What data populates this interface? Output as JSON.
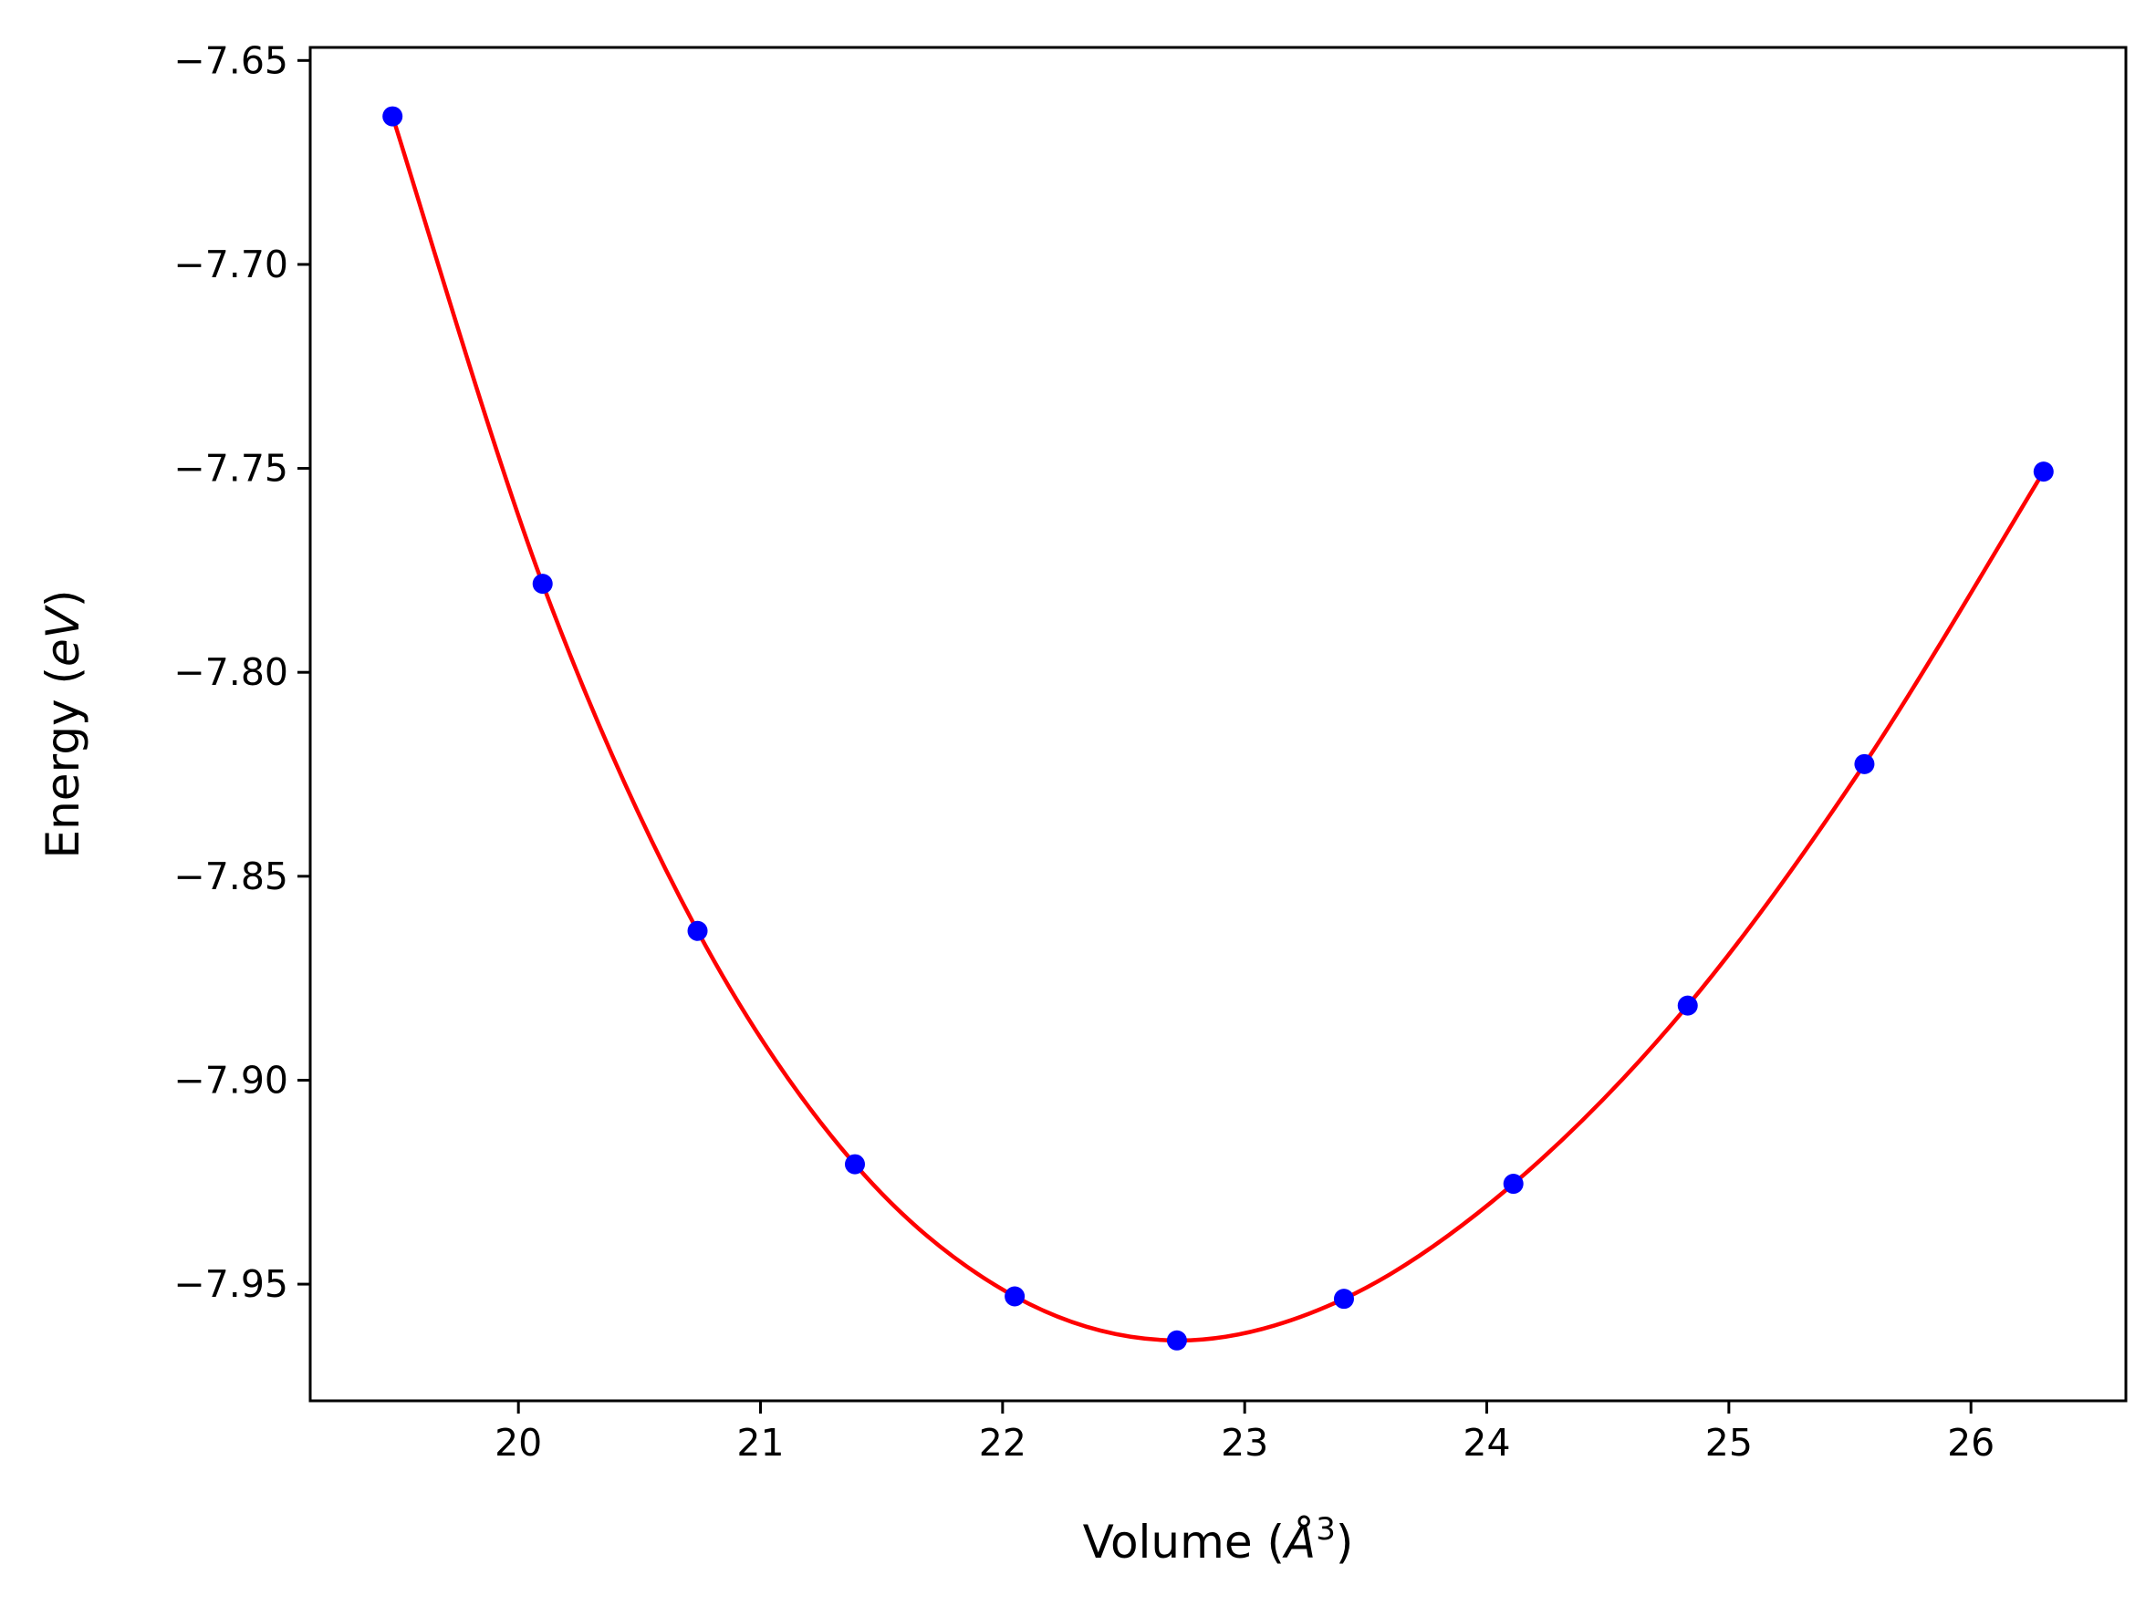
{
  "chart_data": {
    "type": "line",
    "title": "",
    "xlabel": "Volume (Å³)",
    "ylabel": "Energy (eV)",
    "xlim": [
      19.14,
      26.64
    ],
    "ylim": [
      -7.9786,
      -7.6468
    ],
    "xticks": [
      20,
      21,
      22,
      23,
      24,
      25,
      26
    ],
    "yticks": [
      -7.65,
      -7.7,
      -7.75,
      -7.8,
      -7.85,
      -7.9,
      -7.95
    ],
    "xtick_labels": [
      "20",
      "21",
      "22",
      "23",
      "24",
      "25",
      "26"
    ],
    "ytick_labels": [
      "−7.65",
      "−7.70",
      "−7.75",
      "−7.80",
      "−7.85",
      "−7.90",
      "−7.95"
    ],
    "grid": false,
    "legend": null,
    "series": [
      {
        "kind": "points",
        "color": "#0000ff",
        "x": [
          19.48,
          20.1,
          20.74,
          21.39,
          22.05,
          22.72,
          23.41,
          24.11,
          24.83,
          25.56,
          26.3
        ],
        "y": [
          -7.6637,
          -7.7783,
          -7.8634,
          -7.9206,
          -7.953,
          -7.9638,
          -7.9536,
          -7.9254,
          -7.8817,
          -7.8225,
          -7.7508
        ]
      },
      {
        "kind": "fit-line",
        "color": "#ff0000",
        "x": [
          19.48,
          20.1,
          20.74,
          21.39,
          22.05,
          22.72,
          23.41,
          24.11,
          24.83,
          25.56,
          26.3
        ],
        "y": [
          -7.6637,
          -7.7783,
          -7.8634,
          -7.9206,
          -7.953,
          -7.9638,
          -7.9536,
          -7.9254,
          -7.8817,
          -7.8225,
          -7.7508
        ]
      }
    ]
  }
}
